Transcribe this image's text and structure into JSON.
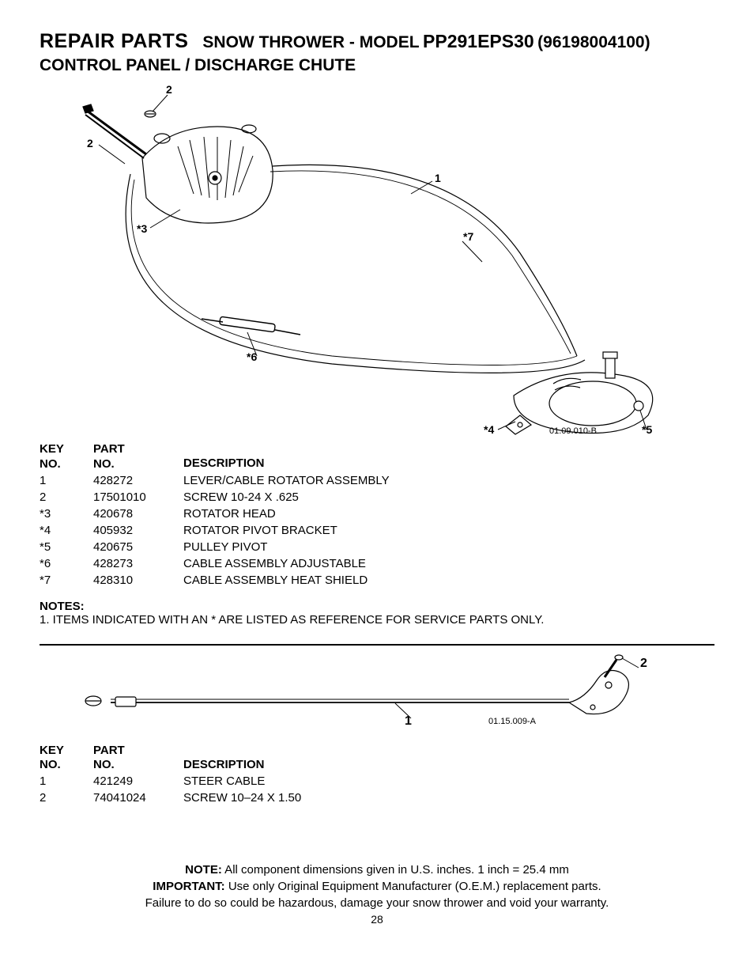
{
  "header": {
    "repair_parts": "REPAIR PARTS",
    "product": "SNOW THROWER - MODEL",
    "model_code": "PP291EPS30",
    "model_number": "(96198004100)",
    "subtitle": "CONTROL PANEL / DISCHARGE CHUTE"
  },
  "diagram1": {
    "callouts": {
      "c2a": "2",
      "c2b": "2",
      "c3": "*3",
      "c1": "1",
      "c7": "*7",
      "c6": "*6",
      "c4": "*4",
      "c5": "*5"
    },
    "drawing_id": "01.09.010-B"
  },
  "table1": {
    "head": {
      "key": "KEY\nNO.",
      "part": "PART\nNO.",
      "desc": "DESCRIPTION"
    },
    "rows": [
      {
        "key": "1",
        "part": "428272",
        "desc": "LEVER/CABLE ROTATOR ASSEMBLY"
      },
      {
        "key": "2",
        "part": "17501010",
        "desc": "SCREW 10-24 X .625"
      },
      {
        "key": "*3",
        "part": "420678",
        "desc": "ROTATOR HEAD"
      },
      {
        "key": "*4",
        "part": "405932",
        "desc": "ROTATOR PIVOT BRACKET"
      },
      {
        "key": "*5",
        "part": "420675",
        "desc": "PULLEY PIVOT"
      },
      {
        "key": "*6",
        "part": "428273",
        "desc": "CABLE ASSEMBLY ADJUSTABLE"
      },
      {
        "key": "*7",
        "part": "428310",
        "desc": "CABLE ASSEMBLY HEAT SHIELD"
      }
    ]
  },
  "notes": {
    "label": "NOTES:",
    "line1": "1. ITEMS INDICATED WITH AN * ARE LISTED AS REFERENCE FOR SERVICE PARTS ONLY."
  },
  "diagram2": {
    "callouts": {
      "c1": "1",
      "c2": "2"
    },
    "drawing_id": "01.15.009-A"
  },
  "table2": {
    "head": {
      "key": "KEY\nNO.",
      "part": "PART\nNO.",
      "desc": "DESCRIPTION"
    },
    "rows": [
      {
        "key": "1",
        "part": "421249",
        "desc": "STEER CABLE"
      },
      {
        "key": "2",
        "part": "74041024",
        "desc": "SCREW 10–24 X 1.50"
      }
    ]
  },
  "footer": {
    "note_label": "NOTE:",
    "note_text": "  All component dimensions given in U.S. inches.     1 inch = 25.4 mm",
    "important_label": "IMPORTANT:",
    "important_text": "  Use only Original Equipment Manufacturer (O.E.M.) replacement parts.",
    "important_line2": "Failure to do so could be hazardous, damage your snow thrower and void your warranty.",
    "page_number": "28"
  }
}
